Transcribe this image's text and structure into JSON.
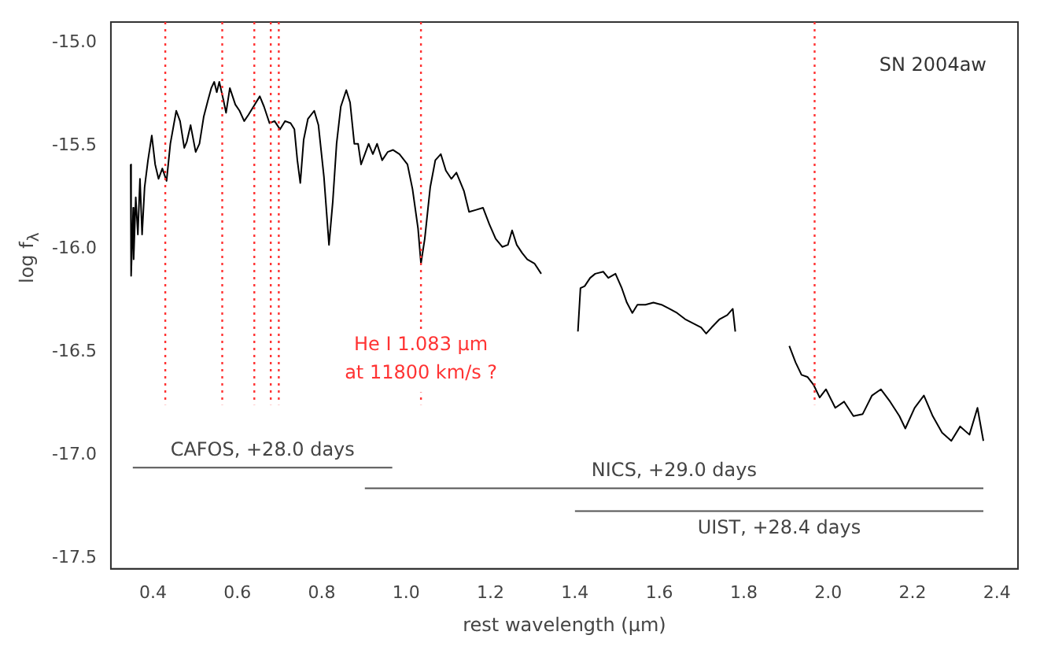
{
  "chart_data": {
    "type": "line",
    "xlabel": "rest wavelength (μm)",
    "ylabel": "log f$_{λ}$",
    "xlim": [
      0.3,
      2.45
    ],
    "xticks": [
      0.4,
      0.6,
      0.8,
      {
        "value": 1,
        "label": "1.0"
      },
      1.2,
      1.4,
      1.6,
      1.8,
      {
        "value": 2,
        "label": "2.0"
      },
      2.2,
      2.4
    ],
    "ylim": [
      -17.55,
      -14.9
    ],
    "yticks": [
      {
        "value": -15,
        "label": "-15.0"
      },
      -15.5,
      {
        "value": -16,
        "label": "-16.0"
      },
      -16.5,
      {
        "value": -17,
        "label": "-17.0"
      },
      -17.5
    ],
    "grid": false,
    "legend": false,
    "marker": "none",
    "line_style": "solid",
    "series": [
      {
        "type": "line",
        "color": "#000000",
        "x": [
          0.347,
          0.348,
          0.353,
          0.354,
          0.359,
          0.364,
          0.369,
          0.374,
          0.38,
          0.388,
          0.397,
          0.405,
          0.413,
          0.422,
          0.432,
          0.441,
          0.455,
          0.464,
          0.474,
          0.48,
          0.489,
          0.501,
          0.51,
          0.52,
          0.53,
          0.538,
          0.545,
          0.551,
          0.557,
          0.567,
          0.573,
          0.582,
          0.595,
          0.605,
          0.616,
          0.626,
          0.638,
          0.653,
          0.663,
          0.676,
          0.688,
          0.701,
          0.713,
          0.726,
          0.735,
          0.742,
          0.749,
          0.757,
          0.767,
          0.782,
          0.792,
          0.805,
          0.817,
          0.826,
          0.835,
          0.845,
          0.858,
          0.867,
          0.877,
          0.886,
          0.893,
          0.902,
          0.911,
          0.921,
          0.931,
          0.943,
          0.956,
          0.969,
          0.984,
          1.003,
          1.015,
          1.028,
          1.035,
          1.044,
          1.057,
          1.069,
          1.082,
          1.094,
          1.107,
          1.119,
          1.137,
          1.149,
          1.166,
          1.182,
          1.197,
          1.212,
          1.228,
          1.241,
          1.251,
          1.262,
          1.275,
          1.287,
          1.304,
          1.32
        ],
        "values": [
          -15.59,
          -16.13,
          -15.8,
          -16.05,
          -15.75,
          -15.93,
          -15.66,
          -15.93,
          -15.7,
          -15.57,
          -15.45,
          -15.59,
          -15.66,
          -15.61,
          -15.67,
          -15.49,
          -15.33,
          -15.38,
          -15.51,
          -15.48,
          -15.4,
          -15.53,
          -15.49,
          -15.36,
          -15.28,
          -15.22,
          -15.19,
          -15.24,
          -15.19,
          -15.28,
          -15.34,
          -15.22,
          -15.3,
          -15.33,
          -15.38,
          -15.35,
          -15.31,
          -15.26,
          -15.31,
          -15.39,
          -15.38,
          -15.42,
          -15.38,
          -15.39,
          -15.42,
          -15.57,
          -15.68,
          -15.47,
          -15.37,
          -15.33,
          -15.4,
          -15.65,
          -15.98,
          -15.77,
          -15.49,
          -15.31,
          -15.23,
          -15.29,
          -15.49,
          -15.49,
          -15.59,
          -15.54,
          -15.49,
          -15.54,
          -15.49,
          -15.57,
          -15.53,
          -15.52,
          -15.54,
          -15.59,
          -15.71,
          -15.9,
          -16.07,
          -15.95,
          -15.7,
          -15.57,
          -15.54,
          -15.62,
          -15.66,
          -15.63,
          -15.72,
          -15.82,
          -15.81,
          -15.8,
          -15.88,
          -15.95,
          -15.99,
          -15.98,
          -15.91,
          -15.98,
          -16.02,
          -16.05,
          -16.07,
          -16.12
        ]
      },
      {
        "type": "line",
        "color": "#000000",
        "x": [
          1.407,
          1.413,
          1.423,
          1.436,
          1.448,
          1.467,
          1.479,
          1.496,
          1.511,
          1.523,
          1.536,
          1.548,
          1.567,
          1.586,
          1.605,
          1.624,
          1.642,
          1.661,
          1.68,
          1.699,
          1.711,
          1.724,
          1.743,
          1.761,
          1.774,
          1.78
        ],
        "values": [
          -16.4,
          -16.19,
          -16.18,
          -16.14,
          -16.12,
          -16.11,
          -16.14,
          -16.12,
          -16.19,
          -16.26,
          -16.31,
          -16.27,
          -16.27,
          -16.26,
          -16.27,
          -16.29,
          -16.31,
          -16.34,
          -16.36,
          -16.38,
          -16.41,
          -16.38,
          -16.34,
          -16.32,
          -16.29,
          -16.4
        ]
      },
      {
        "type": "line",
        "color": "#000000",
        "x": [
          1.908,
          1.923,
          1.937,
          1.951,
          1.966,
          1.98,
          1.995,
          2.017,
          2.038,
          2.06,
          2.082,
          2.104,
          2.125,
          2.147,
          2.169,
          2.183,
          2.205,
          2.227,
          2.248,
          2.27,
          2.292,
          2.313,
          2.335,
          2.354,
          2.368
        ],
        "values": [
          -16.47,
          -16.55,
          -16.61,
          -16.62,
          -16.66,
          -16.72,
          -16.68,
          -16.77,
          -16.74,
          -16.81,
          -16.8,
          -16.71,
          -16.68,
          -16.74,
          -16.81,
          -16.87,
          -16.77,
          -16.71,
          -16.81,
          -16.89,
          -16.93,
          -16.86,
          -16.9,
          -16.77,
          -16.93
        ]
      },
      {
        "type": "line",
        "name": "CAFOS, +28.0 days",
        "color": "#555555",
        "x": [
          0.352,
          0.967
        ],
        "values": [
          -17.06,
          -17.06
        ]
      },
      {
        "type": "line",
        "name": "NICS, +29.0 days",
        "color": "#555555",
        "x": [
          0.902,
          2.368
        ],
        "values": [
          -17.16,
          -17.16
        ]
      },
      {
        "type": "line",
        "name": "UIST, +28.4 days",
        "color": "#555555",
        "x": [
          1.4,
          2.368
        ],
        "values": [
          -17.27,
          -17.27
        ]
      }
    ],
    "ref_lines": [
      {
        "axis": "x",
        "value": 0.429,
        "color": "#ff3333",
        "line_style": "dotted"
      },
      {
        "axis": "x",
        "value": 0.564,
        "color": "#ff3333",
        "line_style": "dotted"
      },
      {
        "axis": "x",
        "value": 0.64,
        "color": "#ff3333",
        "line_style": "dotted"
      },
      {
        "axis": "x",
        "value": 0.679,
        "color": "#ff3333",
        "line_style": "dotted"
      },
      {
        "axis": "x",
        "value": 0.698,
        "color": "#ff3333",
        "line_style": "dotted"
      },
      {
        "axis": "x",
        "value": 1.035,
        "color": "#ff3333",
        "line_style": "dotted"
      },
      {
        "axis": "x",
        "value": 1.968,
        "color": "#ff3333",
        "line_style": "dotted"
      }
    ],
    "annotations": [
      "SN 2004aw",
      {
        "text": "He I 1.083 μm\nat 11800 km/s ?",
        "x": 1.035,
        "y": -16.42
      }
    ]
  }
}
